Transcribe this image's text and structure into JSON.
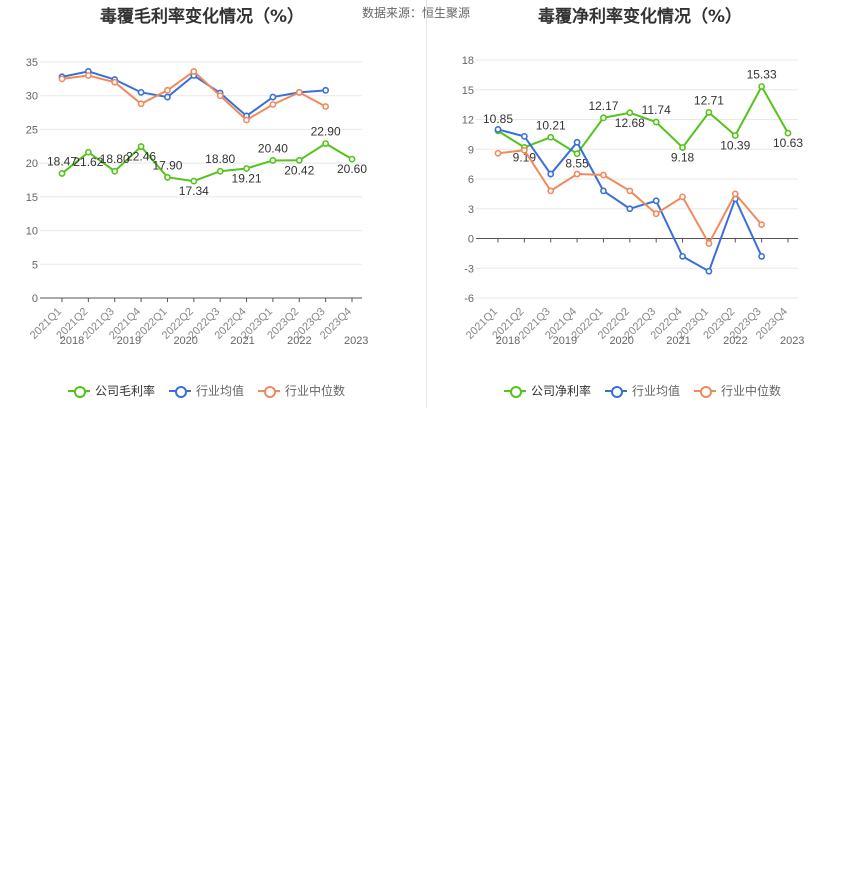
{
  "source_label": "数据来源：恒生聚源",
  "colors": {
    "company": "#52c41a",
    "avg": "#3a6fd8",
    "median": "#f08a5d",
    "grid": "#e8e8e8",
    "axis": "#555555"
  },
  "quarters": [
    "2021Q1",
    "2021Q2",
    "2021Q3",
    "2021Q4",
    "2022Q1",
    "2022Q2",
    "2022Q3",
    "2022Q4",
    "2023Q1",
    "2023Q2",
    "2023Q3",
    "2023Q4"
  ],
  "years": [
    "2018",
    "2019",
    "2020",
    "2021",
    "2022",
    "2023"
  ],
  "chart_data": [
    {
      "type": "line",
      "title": "毛利率变化情况（%）",
      "title_prefix_glyphs": "毒覆",
      "yticks": [
        0,
        5,
        10,
        15,
        20,
        25,
        30,
        35
      ],
      "yticks_alt": [
        0,
        5,
        10,
        15,
        20,
        25,
        30,
        35
      ],
      "ylim": [
        0,
        35
      ],
      "series": [
        {
          "name": "公司毛利率",
          "role": "company",
          "values": [
            18.47,
            21.62,
            18.8,
            22.46,
            17.9,
            17.34,
            18.8,
            19.21,
            20.4,
            20.42,
            22.9,
            20.6
          ],
          "labels": [
            "18.47",
            "21.62",
            "18.80",
            "22.46",
            "17.90",
            "17.34",
            "18.80",
            "19.21",
            "20.40",
            "20.42",
            "22.90",
            "20.60"
          ]
        },
        {
          "name": "行业均值",
          "role": "avg",
          "values": [
            32.8,
            33.6,
            32.4,
            30.5,
            29.8,
            33.0,
            30.4,
            27.0,
            29.8,
            30.5,
            30.8,
            null
          ]
        },
        {
          "name": "行业中位数",
          "role": "median",
          "values": [
            32.5,
            33.0,
            32.0,
            28.8,
            30.8,
            33.6,
            30.0,
            26.4,
            28.7,
            30.5,
            28.4,
            null
          ]
        }
      ],
      "legend": [
        "公司毛利率",
        "行业均值",
        "行业中位数"
      ],
      "legend_position": "bottom",
      "grid": true
    },
    {
      "type": "line",
      "title": "净利率变化情况（%）",
      "title_prefix_glyphs": "毒覆",
      "yticks": [
        -6,
        -3,
        0,
        3,
        6,
        9,
        12,
        15,
        18
      ],
      "yticks_alt": [
        -6,
        -3,
        0,
        3,
        6,
        9,
        12,
        15,
        18
      ],
      "ylim": [
        -6,
        18
      ],
      "series": [
        {
          "name": "公司净利率",
          "role": "company",
          "values": [
            10.85,
            9.19,
            10.21,
            8.55,
            12.17,
            12.68,
            11.74,
            9.18,
            12.71,
            10.39,
            15.33,
            10.63
          ],
          "labels": [
            "10.85",
            "9.19",
            "10.21",
            "8.55",
            "12.17",
            "12.68",
            "11.74",
            "9.18",
            "12.71",
            "10.39",
            "15.33",
            "10.63"
          ]
        },
        {
          "name": "行业均值",
          "role": "avg",
          "values": [
            11.0,
            10.3,
            6.5,
            9.7,
            4.8,
            3.0,
            3.8,
            -1.8,
            -3.3,
            4.0,
            -1.8,
            null
          ]
        },
        {
          "name": "行业中位数",
          "role": "median",
          "values": [
            8.6,
            8.9,
            4.8,
            6.5,
            6.4,
            4.8,
            2.5,
            4.2,
            -0.5,
            4.5,
            1.4,
            null
          ]
        }
      ],
      "legend": [
        "公司净利率",
        "行业均值",
        "行业中位数"
      ],
      "legend_position": "bottom",
      "grid": true
    }
  ]
}
